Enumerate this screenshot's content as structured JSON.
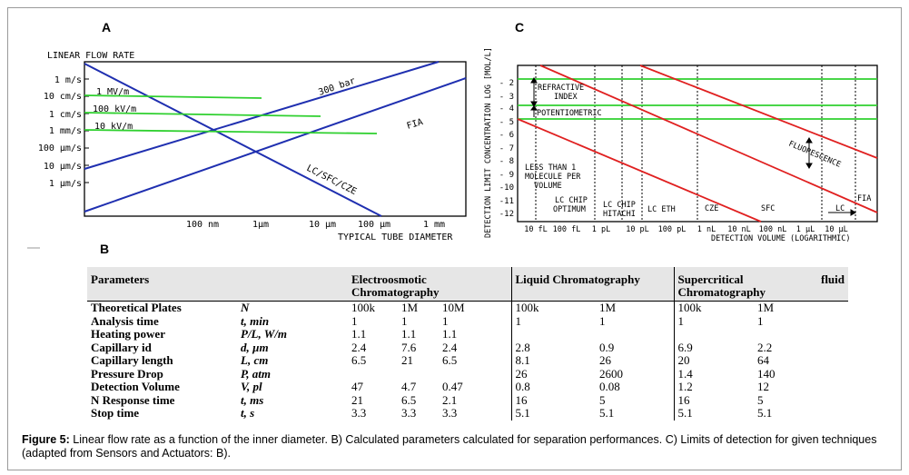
{
  "panels": {
    "a": "A",
    "b": "B",
    "c": "C"
  },
  "chartA": {
    "ylabel": "LINEAR FLOW RATE",
    "yticks": [
      "1 m/s",
      "10 cm/s",
      "1 cm/s",
      "1 mm/s",
      "100 µm/s",
      "10 µm/s",
      "1 µm/s"
    ],
    "xticks": [
      "100 nm",
      "1µm",
      "10 µm",
      "100 µm",
      "1 mm"
    ],
    "xlabel": "TYPICAL TUBE DIAMETER",
    "labels": {
      "pressure": "300 bar",
      "fia": "FIA",
      "lc": "LC/SFC/CZE",
      "f1": "1 MV/m",
      "f2": "100 kV/m",
      "f3": "10 kV/m"
    }
  },
  "chartC": {
    "ylabel": "DETECTION LIMIT CONCENTRATION LOG [MOL/L]",
    "yticks": [
      "- 2",
      "- 3",
      "- 4",
      "- 5",
      "- 6",
      "- 7",
      "- 8",
      "- 9",
      "-10",
      "-11",
      "-12"
    ],
    "xticks": [
      "10 fL",
      "100 fL",
      "1 pL",
      "10 pL",
      "100 pL",
      "1 nL",
      "10 nL",
      "100 nL",
      "1 µL",
      "10 µL"
    ],
    "xlabel": "DETECTION VOLUME (LOGARITHMIC)",
    "labels": {
      "ri1": "REFRACTIVE",
      "ri2": "INDEX",
      "pot": "POTENTIOMETRIC",
      "fl": "FLUORESCENCE",
      "m1": "LESS THAN 1",
      "m2": "MOLECULE PER",
      "m3": "VOLUME",
      "opt1": "LC CHIP",
      "opt2": "OPTIMUM",
      "hit1": "LC CHIP",
      "hit2": "HITACHI",
      "eth": "LC ETH",
      "cze": "CZE",
      "sfc": "SFC",
      "lc": "LC",
      "fia": "FIA"
    }
  },
  "table": {
    "headers": {
      "param": "Parameters",
      "eo": "Electroosmotic Chromatography",
      "lc": "Liquid Chromatography",
      "sf1": "Supercritical",
      "sf2": "fluid",
      "sf3": "Chromatography"
    },
    "rows": [
      {
        "name": "Theoretical Plates",
        "sym": "N",
        "v": [
          "100k",
          "1M",
          "10M",
          "100k",
          "1M",
          "100k",
          "1M"
        ]
      },
      {
        "name": "Analysis time",
        "sym": "t, min",
        "v": [
          "1",
          "1",
          "1",
          "1",
          "1",
          "1",
          "1"
        ]
      },
      {
        "name": "Heating power",
        "sym": "P/L, W/m",
        "v": [
          "1.1",
          "1.1",
          "1.1",
          "",
          "",
          "",
          ""
        ]
      },
      {
        "name": "Capillary id",
        "sym": "d, µm",
        "v": [
          "2.4",
          "7.6",
          "2.4",
          "2.8",
          "0.9",
          "6.9",
          "2.2"
        ]
      },
      {
        "name": "Capillary length",
        "sym": "L, cm",
        "v": [
          "6.5",
          "21",
          "6.5",
          "8.1",
          "26",
          "20",
          "64"
        ]
      },
      {
        "name": "Pressure Drop",
        "sym": "P, atm",
        "v": [
          "",
          "",
          "",
          "26",
          "2600",
          "1.4",
          "140"
        ]
      },
      {
        "name": "Detection Volume",
        "sym": "V, pl",
        "v": [
          "47",
          "4.7",
          "0.47",
          "0.8",
          "0.08",
          "1.2",
          "12"
        ]
      },
      {
        "name": "N Response time",
        "sym": "t, ms",
        "v": [
          "21",
          "6.5",
          "2.1",
          "16",
          "5",
          "16",
          "5"
        ]
      },
      {
        "name": "Stop time",
        "sym": "t, s",
        "v": [
          "3.3",
          "3.3",
          "3.3",
          "5.1",
          "5.1",
          "5.1",
          "5.1"
        ]
      }
    ]
  },
  "caption": {
    "label": "Figure 5:",
    "text": " Linear flow rate as a function of the inner diameter. B) Calculated parameters calculated for separation performances. C) Limits of detection for given techniques (adapted from Sensors and Actuators: B)."
  }
}
